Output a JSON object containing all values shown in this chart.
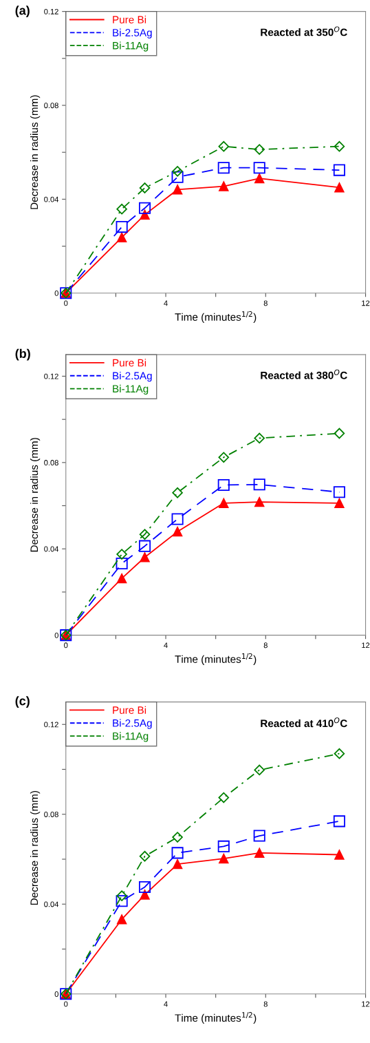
{
  "chart_data": [
    {
      "type": "line",
      "title": "Reacted at 350$^{O}$C",
      "annotations": [
        "(a)"
      ],
      "xlabel": "Time (minutes$^{1/2}$)",
      "ylabel": "Decrease in radius (mm)",
      "legend": "top left",
      "grid": false,
      "xlim": [
        0,
        12
      ],
      "xticks": [
        0,
        {
          "value": 2,
          "label": null
        },
        4,
        {
          "value": 6,
          "label": null
        },
        8,
        {
          "value": 10,
          "label": null
        },
        12
      ],
      "ylim": [
        0,
        0.12
      ],
      "yticks": [
        0,
        {
          "value": 0.02,
          "label": null
        },
        0.04,
        {
          "value": 0.06,
          "label": null
        },
        0.08,
        {
          "value": 0.1,
          "label": null
        },
        0.12
      ],
      "x": [
        0,
        2.24,
        3.16,
        4.47,
        6.32,
        7.75,
        10.95
      ],
      "series": [
        {
          "name": "Pure Bi",
          "color": "#ff0000",
          "marker": "triangle",
          "line_style": "solid",
          "values": [
            0,
            0.0237,
            0.0334,
            0.0441,
            0.0455,
            0.0489,
            0.045
          ]
        },
        {
          "name": "Bi-2.5Ag",
          "color": "#0000ff",
          "marker": "square",
          "line_style": "dashed",
          "values": [
            0,
            0.0282,
            0.0362,
            0.0494,
            0.0534,
            0.0534,
            0.0524
          ]
        },
        {
          "name": "Bi-11Ag",
          "color": "#008000",
          "marker": "diamond",
          "line_style": "dashdot",
          "values": [
            0,
            0.0358,
            0.0448,
            0.0519,
            0.0625,
            0.0612,
            0.0625
          ]
        }
      ]
    },
    {
      "type": "line",
      "title": "Reacted at 380$^{O}$C",
      "annotations": [
        "(b)"
      ],
      "xlabel": "Time (minutes$^{1/2}$)",
      "ylabel": "Decrease in radius (mm)",
      "legend": "top left",
      "grid": false,
      "xlim": [
        0,
        12
      ],
      "xticks": [
        0,
        {
          "value": 2,
          "label": null
        },
        4,
        {
          "value": 6,
          "label": null
        },
        8,
        {
          "value": 10,
          "label": null
        },
        12
      ],
      "ylim": [
        0,
        0.13
      ],
      "yticks": [
        0,
        {
          "value": 0.02,
          "label": null
        },
        0.04,
        {
          "value": 0.06,
          "label": null
        },
        0.08,
        {
          "value": 0.1,
          "label": null
        },
        0.12
      ],
      "x": [
        0,
        2.24,
        3.16,
        4.47,
        6.32,
        7.75,
        10.95
      ],
      "series": [
        {
          "name": "Pure Bi",
          "color": "#ff0000",
          "marker": "triangle",
          "line_style": "solid",
          "values": [
            0,
            0.0263,
            0.0361,
            0.048,
            0.0612,
            0.0617,
            0.0612
          ]
        },
        {
          "name": "Bi-2.5Ag",
          "color": "#0000ff",
          "marker": "square",
          "line_style": "dashed",
          "values": [
            0,
            0.0332,
            0.0413,
            0.0538,
            0.0696,
            0.0698,
            0.0663
          ]
        },
        {
          "name": "Bi-11Ag",
          "color": "#008000",
          "marker": "diamond",
          "line_style": "dashdot",
          "values": [
            0,
            0.0375,
            0.0467,
            0.066,
            0.0824,
            0.0913,
            0.0935
          ]
        }
      ]
    },
    {
      "type": "line",
      "title": "Reacted at 410$^{O}$C",
      "annotations": [
        "(c)"
      ],
      "xlabel": "Time (minutes$^{1/2}$)",
      "ylabel": "Decrease in radius (mm)",
      "legend": "top left",
      "grid": false,
      "xlim": [
        0,
        12
      ],
      "xticks": [
        0,
        {
          "value": 2,
          "label": null
        },
        4,
        {
          "value": 6,
          "label": null
        },
        8,
        {
          "value": 10,
          "label": null
        },
        12
      ],
      "ylim": [
        0,
        0.13
      ],
      "yticks": [
        0,
        {
          "value": 0.02,
          "label": null
        },
        0.04,
        {
          "value": 0.06,
          "label": null
        },
        0.08,
        {
          "value": 0.1,
          "label": null
        },
        0.12
      ],
      "x": [
        0,
        2.24,
        3.16,
        4.47,
        6.32,
        7.75,
        10.95
      ],
      "series": [
        {
          "name": "Pure Bi",
          "color": "#ff0000",
          "marker": "triangle",
          "line_style": "solid",
          "values": [
            0,
            0.0332,
            0.0442,
            0.0578,
            0.0603,
            0.0628,
            0.062
          ]
        },
        {
          "name": "Bi-2.5Ag",
          "color": "#0000ff",
          "marker": "square",
          "line_style": "dashed",
          "values": [
            0,
            0.0414,
            0.0476,
            0.0628,
            0.0657,
            0.0704,
            0.0769
          ]
        },
        {
          "name": "Bi-11Ag",
          "color": "#008000",
          "marker": "diamond",
          "line_style": "dashdot",
          "values": [
            0,
            0.0437,
            0.0613,
            0.0698,
            0.0874,
            0.0997,
            0.107
          ]
        }
      ]
    }
  ]
}
